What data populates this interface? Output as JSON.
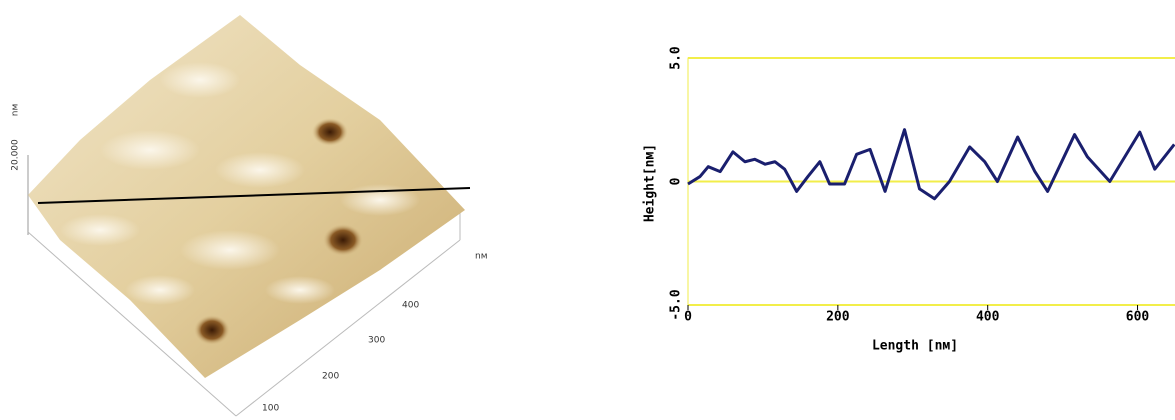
{
  "surface": {
    "z_label": "20.000",
    "z_unit": "nм",
    "xy_unit": "nм",
    "xy_ticks": [
      "100",
      "200",
      "300",
      "400"
    ]
  },
  "chart_data": {
    "type": "line",
    "x_label": "Length [nм]",
    "y_label": "Height[nм]",
    "x": [
      0,
      16,
      27,
      43,
      60,
      76,
      89,
      103,
      116,
      129,
      145,
      160,
      176,
      189,
      209,
      225,
      243,
      263,
      289,
      309,
      329,
      349,
      376,
      396,
      413,
      440,
      463,
      480,
      516,
      533,
      563,
      603,
      623,
      649
    ],
    "values": [
      -0.1,
      0.2,
      0.6,
      0.4,
      1.2,
      0.8,
      0.9,
      0.7,
      0.8,
      0.5,
      -0.4,
      0.2,
      0.8,
      -0.1,
      -0.1,
      1.1,
      1.3,
      -0.4,
      2.1,
      -0.3,
      -0.7,
      0,
      1.4,
      0.8,
      0,
      1.8,
      0.4,
      -0.4,
      1.9,
      1.0,
      0.0,
      2.0,
      0.5,
      1.5
    ],
    "color": "#1a1f6e",
    "xlim": [
      0,
      650
    ],
    "xticks": [
      0,
      200,
      400,
      600
    ],
    "ylim": [
      -5,
      5
    ],
    "yticks": [
      {
        "value": -5,
        "label": "-5.0"
      },
      0,
      {
        "value": 5,
        "label": "5.0"
      }
    ],
    "grid_color": "#f2ee4a"
  }
}
